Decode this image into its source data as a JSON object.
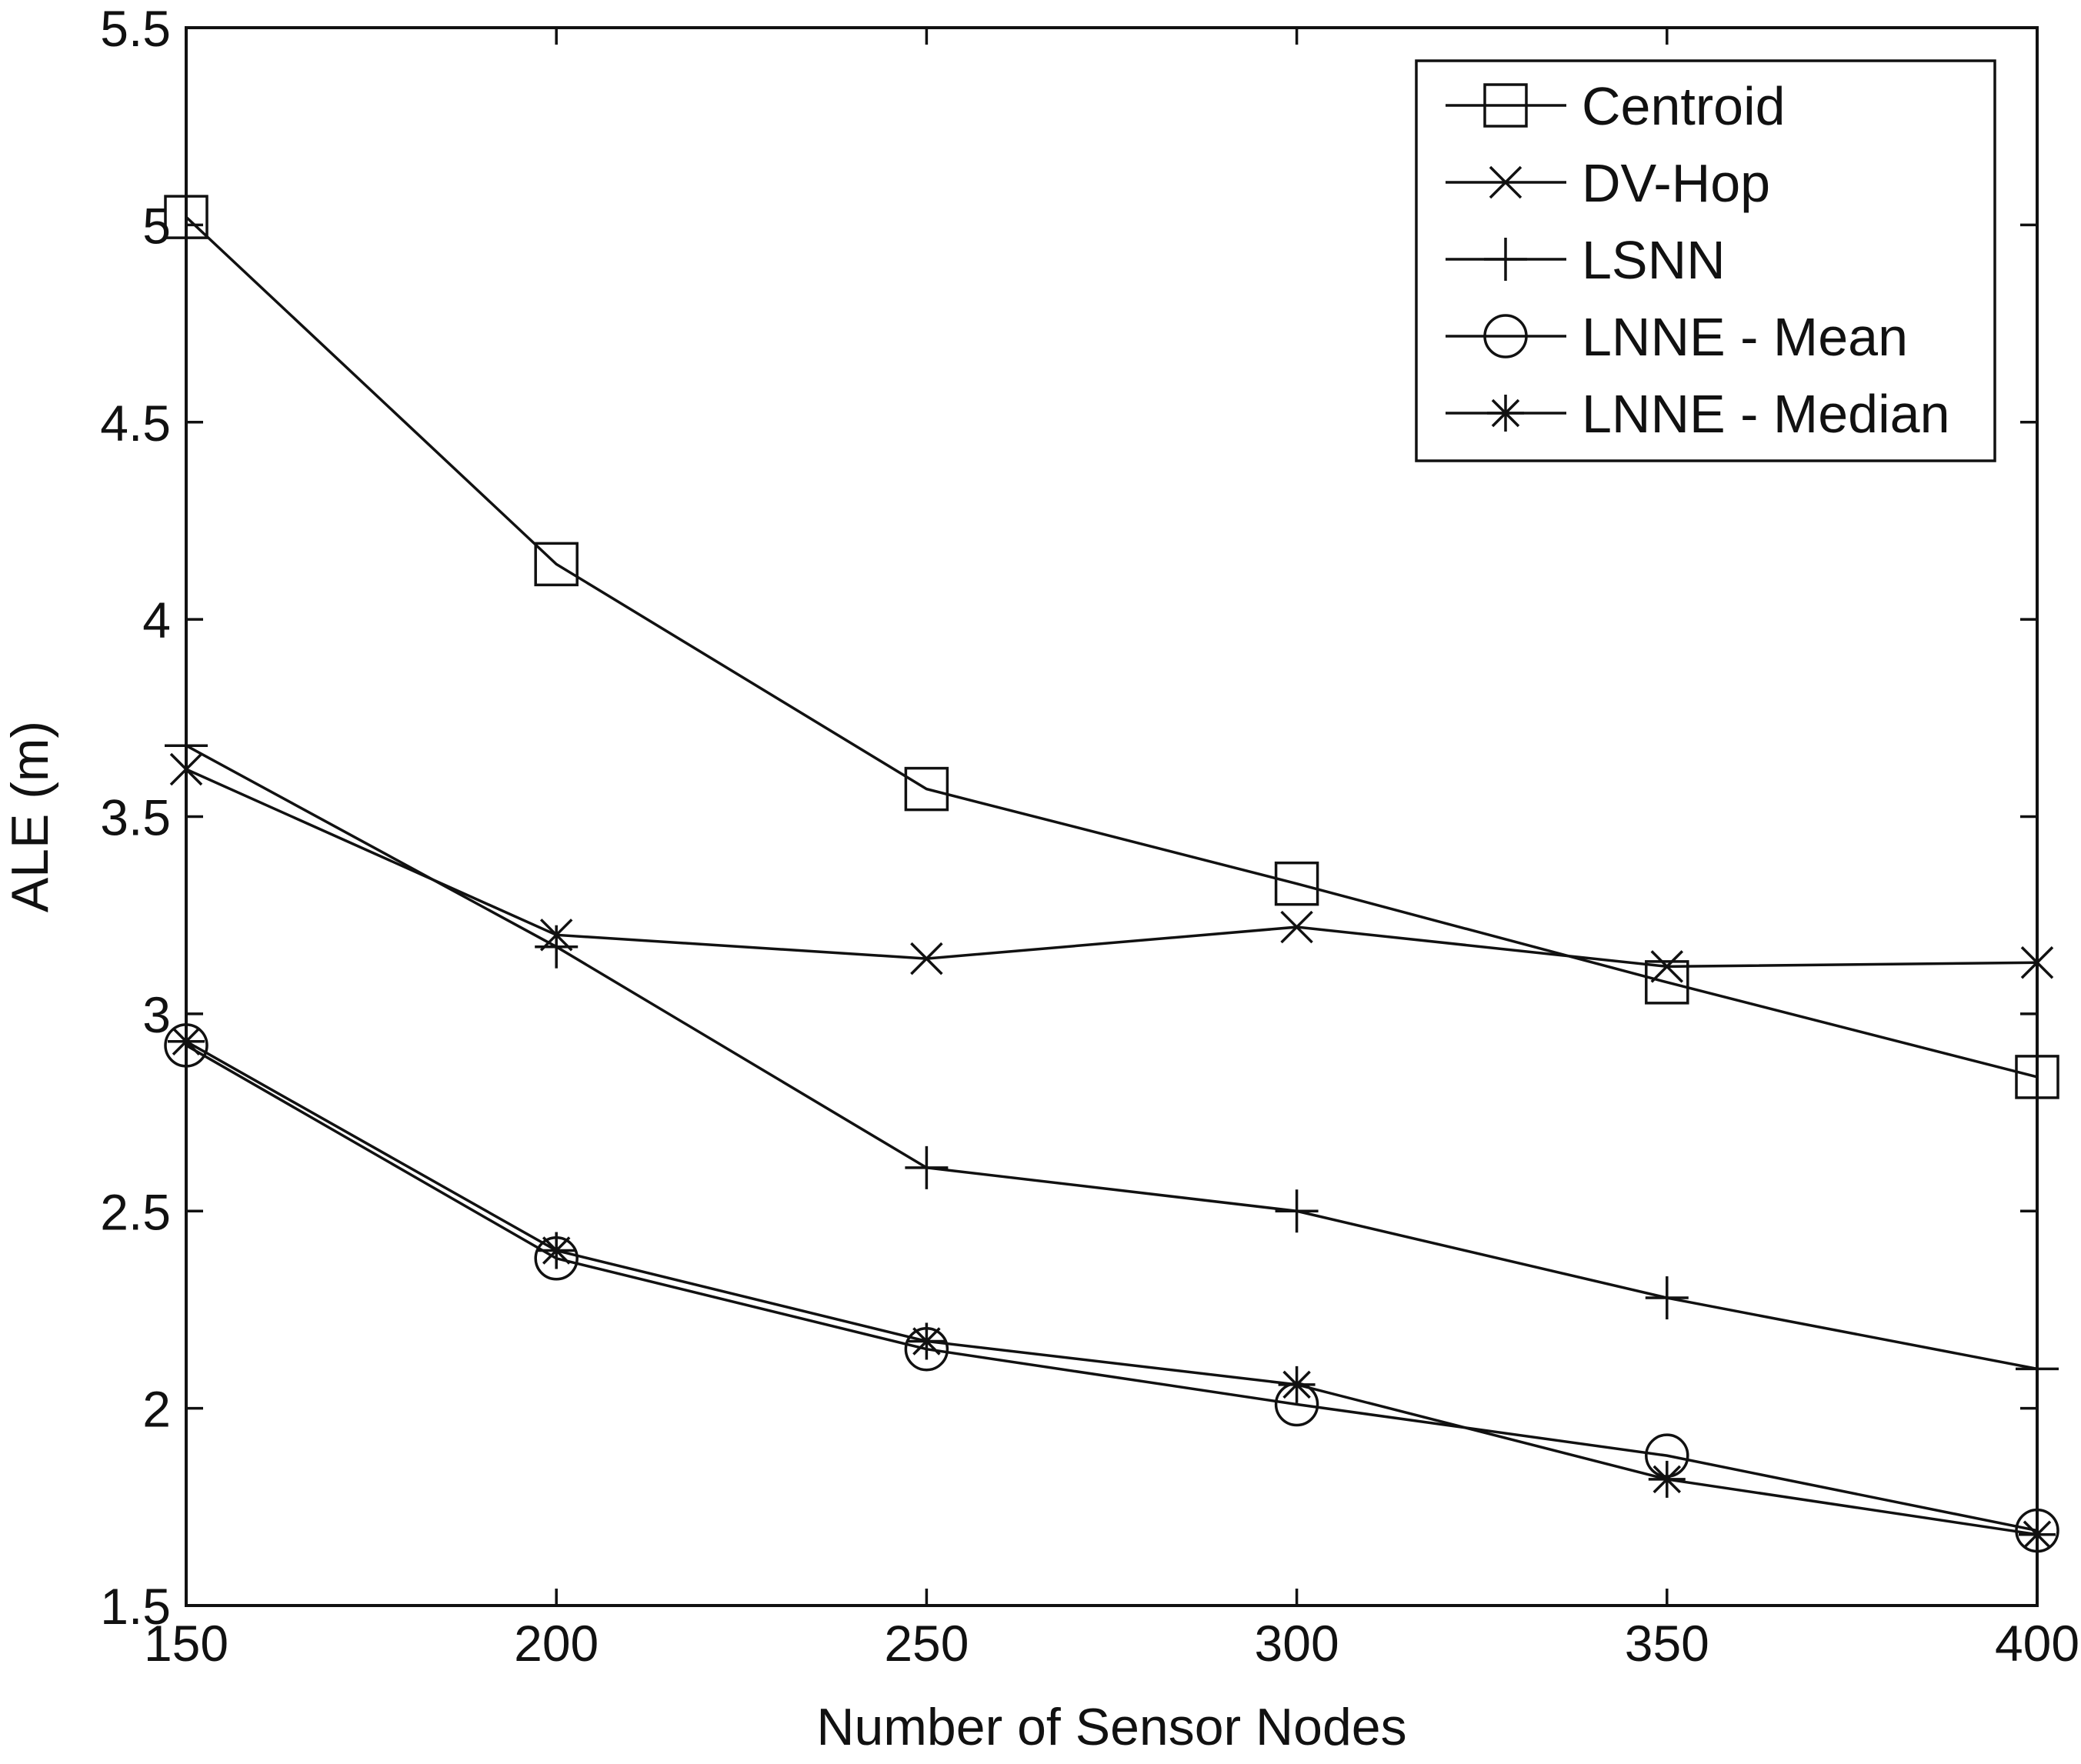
{
  "chart_data": {
    "type": "line",
    "title": "",
    "xlabel": "Number of Sensor Nodes",
    "ylabel": "ALE (m)",
    "x": [
      150,
      200,
      250,
      300,
      350,
      400
    ],
    "xlim": [
      150,
      400
    ],
    "ylim": [
      1.5,
      5.5
    ],
    "xticks": [
      150,
      200,
      250,
      300,
      350,
      400
    ],
    "yticks": [
      1.5,
      2,
      2.5,
      3,
      3.5,
      4,
      4.5,
      5,
      5.5
    ],
    "ytick_labels": [
      "1.5",
      "2",
      "2.5",
      "3",
      "3.5",
      "4",
      "4.5",
      "5",
      "5.5"
    ],
    "grid": false,
    "legend_position": "top-right",
    "series": [
      {
        "name": "Centroid",
        "marker": "square",
        "values": [
          5.02,
          4.14,
          3.57,
          3.33,
          3.08,
          2.84
        ]
      },
      {
        "name": "DV-Hop",
        "marker": "x",
        "values": [
          3.62,
          3.2,
          3.14,
          3.22,
          3.12,
          3.13
        ]
      },
      {
        "name": "LSNN",
        "marker": "plus",
        "values": [
          3.68,
          3.17,
          2.61,
          2.5,
          2.28,
          2.1
        ]
      },
      {
        "name": "LNNE - Mean",
        "marker": "circle",
        "values": [
          2.92,
          2.38,
          2.15,
          2.01,
          1.88,
          1.69
        ]
      },
      {
        "name": "LNNE - Median",
        "marker": "star",
        "values": [
          2.93,
          2.4,
          2.17,
          2.06,
          1.82,
          1.68
        ]
      }
    ]
  }
}
